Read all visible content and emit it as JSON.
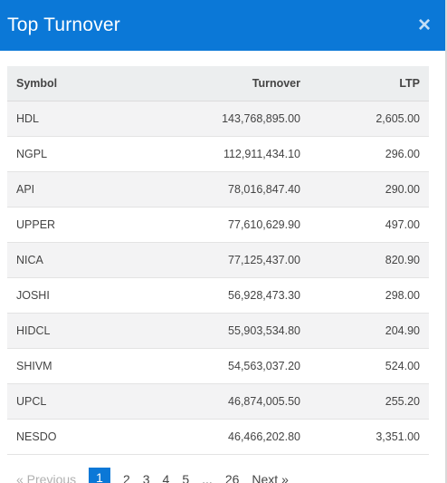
{
  "modal": {
    "title": "Top Turnover",
    "close_glyph": "×"
  },
  "table": {
    "headers": {
      "symbol": "Symbol",
      "turnover": "Turnover",
      "ltp": "LTP"
    },
    "rows": [
      {
        "symbol": "HDL",
        "turnover": "143,768,895.00",
        "ltp": "2,605.00"
      },
      {
        "symbol": "NGPL",
        "turnover": "112,911,434.10",
        "ltp": "296.00"
      },
      {
        "symbol": "API",
        "turnover": "78,016,847.40",
        "ltp": "290.00"
      },
      {
        "symbol": "UPPER",
        "turnover": "77,610,629.90",
        "ltp": "497.00"
      },
      {
        "symbol": "NICA",
        "turnover": "77,125,437.00",
        "ltp": "820.90"
      },
      {
        "symbol": "JOSHI",
        "turnover": "56,928,473.30",
        "ltp": "298.00"
      },
      {
        "symbol": "HIDCL",
        "turnover": "55,903,534.80",
        "ltp": "204.90"
      },
      {
        "symbol": "SHIVM",
        "turnover": "54,563,037.20",
        "ltp": "524.00"
      },
      {
        "symbol": "UPCL",
        "turnover": "46,874,005.50",
        "ltp": "255.20"
      },
      {
        "symbol": "NESDO",
        "turnover": "46,466,202.80",
        "ltp": "3,351.00"
      }
    ]
  },
  "pagination": {
    "previous": "« Previous",
    "pages": [
      "1",
      "2",
      "3",
      "4",
      "5"
    ],
    "ellipsis": "...",
    "last": "26",
    "next": "Next »",
    "active_page": "1"
  },
  "colors": {
    "header_bg": "#0b78d7",
    "active_page_bg": "#0b78d7"
  }
}
